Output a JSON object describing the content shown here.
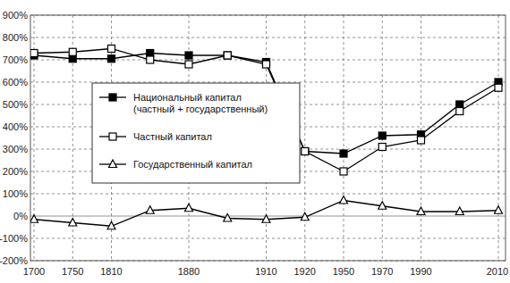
{
  "chart_data": {
    "type": "line",
    "categories": [
      "1700",
      "1750",
      "1810",
      null,
      "1880",
      null,
      "1910",
      "1920",
      "1950",
      "1970",
      "1990",
      null,
      "2010"
    ],
    "series": [
      {
        "name": "Национальный капитал (частный + государственный)",
        "color": "#000000",
        "marker": "square",
        "line_style": "solid",
        "values": [
          720,
          705,
          705,
          730,
          720,
          720,
          690,
          290,
          280,
          360,
          365,
          500,
          600
        ]
      },
      {
        "name": "Частный капитал",
        "color": "#000000",
        "marker": "square-open",
        "line_style": "solid",
        "values": [
          730,
          735,
          750,
          700,
          680,
          720,
          680,
          290,
          200,
          310,
          340,
          470,
          575
        ]
      },
      {
        "name": "Государственный капитал",
        "color": "#000000",
        "marker": "triangle-open",
        "line_style": "solid",
        "values": [
          -15,
          -30,
          -45,
          25,
          35,
          -10,
          -15,
          -5,
          70,
          45,
          20,
          20,
          25
        ]
      }
    ],
    "ylim": [
      -200,
      900
    ],
    "yticks": [
      {
        "value": -200,
        "label": "-200%"
      },
      {
        "value": -100,
        "label": "-100%"
      },
      {
        "value": 0,
        "label": "0%"
      },
      {
        "value": 100,
        "label": "100%"
      },
      {
        "value": 200,
        "label": "200%"
      },
      {
        "value": 300,
        "label": "300%"
      },
      {
        "value": 400,
        "label": "400%"
      },
      {
        "value": 500,
        "label": "500%"
      },
      {
        "value": 600,
        "label": "600%"
      },
      {
        "value": 700,
        "label": "700%"
      },
      {
        "value": 800,
        "label": "800%"
      },
      {
        "value": 900,
        "label": "900%"
      }
    ],
    "grid": true,
    "legend": "left"
  }
}
